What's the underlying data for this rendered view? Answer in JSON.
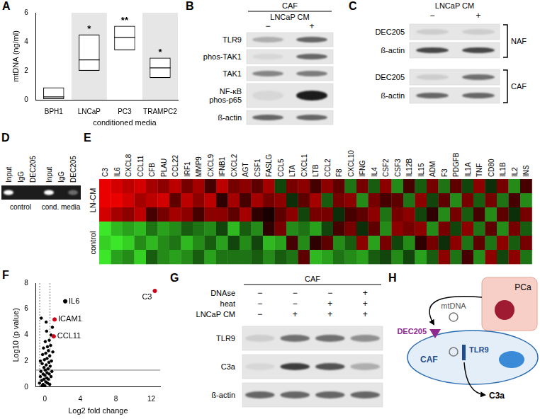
{
  "chart_data": [
    {
      "panel": "A",
      "type": "box",
      "categories": [
        "BPH1",
        "LNCaP",
        "PC3",
        "TRAMPC2"
      ],
      "lows": [
        0.05,
        2.0,
        3.4,
        1.5
      ],
      "medians": [
        0.2,
        2.75,
        4.3,
        2.2
      ],
      "highs": [
        0.85,
        4.5,
        5.1,
        2.9
      ],
      "annotations": [
        {
          "category": "LNCaP",
          "text": "*"
        },
        {
          "category": "PC3",
          "text": "**"
        },
        {
          "category": "TRAMPC2",
          "text": "*"
        }
      ],
      "x_label": {
        "text": "conditioned media",
        "spans": [
          "LNCaP",
          "PC3",
          "TRAMPC2"
        ]
      },
      "y_label": "mtDNA (ng/ml)",
      "ylim": [
        0,
        6
      ],
      "yticks": [
        0,
        2,
        4,
        6
      ],
      "grid": false
    },
    {
      "panel": "F",
      "type": "scatter",
      "x_label": "Log2 fold change",
      "y_label": "Log10 (p value)",
      "xlim": [
        -1,
        13
      ],
      "xticks": [
        0,
        4,
        8,
        12
      ],
      "ylim": [
        0,
        8
      ],
      "yticks": [
        0,
        2,
        4,
        6,
        8
      ],
      "grid": false,
      "reference_lines": {
        "x": [
          -0.58,
          0.58
        ],
        "y": [
          1.3
        ]
      },
      "points": [
        {
          "x": -0.6,
          "y": 0.3,
          "color": "#000000"
        },
        {
          "x": -0.5,
          "y": 0.8,
          "color": "#000000"
        },
        {
          "x": -0.45,
          "y": 1.2,
          "color": "#000000"
        },
        {
          "x": -0.4,
          "y": 5.3,
          "color": "#000000"
        },
        {
          "x": -0.35,
          "y": 0.5,
          "color": "#000000"
        },
        {
          "x": -0.3,
          "y": 1.8,
          "color": "#000000"
        },
        {
          "x": -0.25,
          "y": 2.5,
          "color": "#000000"
        },
        {
          "x": -0.2,
          "y": 0.2,
          "color": "#000000"
        },
        {
          "x": -0.2,
          "y": 1.0,
          "color": "#000000"
        },
        {
          "x": -0.15,
          "y": 3.0,
          "color": "#000000"
        },
        {
          "x": -0.1,
          "y": 0.6,
          "color": "#000000"
        },
        {
          "x": -0.1,
          "y": 1.5,
          "color": "#000000"
        },
        {
          "x": -0.05,
          "y": 2.1,
          "color": "#000000"
        },
        {
          "x": 0,
          "y": 0.1,
          "color": "#000000"
        },
        {
          "x": 0,
          "y": 0.9,
          "color": "#000000"
        },
        {
          "x": 0.05,
          "y": 1.3,
          "color": "#000000"
        },
        {
          "x": 0.05,
          "y": 3.5,
          "color": "#000000"
        },
        {
          "x": 0.1,
          "y": 0.4,
          "color": "#000000"
        },
        {
          "x": 0.1,
          "y": 2.6,
          "color": "#000000"
        },
        {
          "x": 0.15,
          "y": 1.7,
          "color": "#000000"
        },
        {
          "x": 0.2,
          "y": 0.7,
          "color": "#000000"
        },
        {
          "x": 0.2,
          "y": 4.3,
          "color": "#000000"
        },
        {
          "x": 0.25,
          "y": 1.1,
          "color": "#000000"
        },
        {
          "x": 0.25,
          "y": 2.2,
          "color": "#000000"
        },
        {
          "x": 0.3,
          "y": 0.3,
          "color": "#000000"
        },
        {
          "x": 0.3,
          "y": 3.1,
          "color": "#000000"
        },
        {
          "x": 0.35,
          "y": 1.4,
          "color": "#000000"
        },
        {
          "x": 0.4,
          "y": 0.6,
          "color": "#000000"
        },
        {
          "x": 0.4,
          "y": 2.8,
          "color": "#000000"
        },
        {
          "x": 0.45,
          "y": 1.9,
          "color": "#000000"
        },
        {
          "x": 0.5,
          "y": 1.0,
          "color": "#000000"
        },
        {
          "x": 0.5,
          "y": 3.6,
          "color": "#000000"
        },
        {
          "x": 0.55,
          "y": 0.2,
          "color": "#000000"
        },
        {
          "x": 0.55,
          "y": 2.4,
          "color": "#000000"
        },
        {
          "x": 0.6,
          "y": 1.6,
          "color": "#000000"
        },
        {
          "x": 0.65,
          "y": 3.2,
          "color": "#000000"
        },
        {
          "x": 0.7,
          "y": 0.8,
          "color": "#000000"
        },
        {
          "x": 0.7,
          "y": 4.0,
          "color": "#000000"
        },
        {
          "x": 0.75,
          "y": 2.0,
          "color": "#000000"
        },
        {
          "x": 0.8,
          "y": 1.2,
          "color": "#000000"
        },
        {
          "x": 0.85,
          "y": 4.6,
          "color": "#000000"
        },
        {
          "x": 0.9,
          "y": 2.7,
          "color": "#000000"
        },
        {
          "x": -0.5,
          "y": 2.0,
          "color": "#000000"
        },
        {
          "x": -0.3,
          "y": 0.1,
          "color": "#000000"
        },
        {
          "x": 0.15,
          "y": 5.0,
          "color": "#000000"
        },
        {
          "x": 2.3,
          "y": 6.6,
          "color": "#000000",
          "label": "IL6"
        },
        {
          "x": 1.1,
          "y": 5.2,
          "color": "#d0021b",
          "label": "ICAM1"
        },
        {
          "x": 1.0,
          "y": 3.9,
          "color": "#d0021b",
          "label": "CCL11"
        },
        {
          "x": 12.4,
          "y": 7.4,
          "color": "#d0021b",
          "label": "C3"
        }
      ]
    }
  ],
  "panel_b": {
    "panel": "B",
    "header": "CAF",
    "condition": "LNCaP CM",
    "lanes": [
      "−",
      "+"
    ],
    "rows": [
      {
        "label": "TLR9",
        "bands": [
          0.25,
          0.6
        ]
      },
      {
        "label": "phos-TAK1",
        "bands": [
          0.05,
          0.6
        ]
      },
      {
        "label": "TAK1",
        "bands": [
          0.45,
          0.5
        ]
      },
      {
        "label": [
          "NF-κB",
          "phos-p65"
        ],
        "bands": [
          0.05,
          0.95
        ]
      },
      {
        "label": "ß-actin",
        "bands": [
          0.6,
          0.6
        ]
      }
    ]
  },
  "panel_c": {
    "panel": "C",
    "condition": "LNCaP CM",
    "lanes": [
      "−",
      "+"
    ],
    "groups": [
      {
        "label": "NAF",
        "rows": [
          {
            "label": "DEC205",
            "bands": [
              0.1,
              0.1
            ]
          },
          {
            "label": "ß-actin",
            "bands": [
              0.75,
              0.75
            ]
          }
        ]
      },
      {
        "label": "CAF",
        "rows": [
          {
            "label": "DEC205",
            "bands": [
              0.1,
              0.55
            ]
          },
          {
            "label": "ß-actin",
            "bands": [
              0.6,
              0.6
            ]
          }
        ]
      }
    ]
  },
  "panel_d": {
    "panel": "D",
    "groups": [
      {
        "label": "control",
        "lanes": [
          "Input",
          "IgG",
          "DEC205"
        ],
        "bands": [
          1,
          0,
          0
        ]
      },
      {
        "label": "cond. media",
        "lanes": [
          "Input",
          "IgG",
          "DEC205"
        ],
        "bands": [
          1,
          0,
          0.35
        ]
      }
    ]
  },
  "panel_e": {
    "panel": "E",
    "genes": [
      "C3",
      "IL6",
      "CXCL8",
      "CCL11",
      "CFB",
      "PLAU",
      "CCL22",
      "IRF1",
      "MMP9",
      "CXCL9",
      "IFNB1",
      "CXCL2",
      "AGT",
      "CSF1",
      "FASLG",
      "CCL5",
      "LTA",
      "CXCL1",
      "LTB",
      "CCL2",
      "F8",
      "CXCL10",
      "IFNG",
      "IL4",
      "CSF2",
      "CSF3",
      "IL12B",
      "IL15",
      "ADM",
      "F3",
      "PDGFB",
      "IL1A",
      "TNF",
      "CD80",
      "IL1B",
      "IL2",
      "INS"
    ],
    "row_labels": [
      "LN-CM",
      "LN-CM",
      "LN-CM",
      "control",
      "control",
      "control"
    ],
    "color_range": [
      -1,
      1
    ],
    "cells": [
      [
        1,
        0.9,
        0.8,
        0.9,
        0.7,
        0.6,
        0.8,
        0.5,
        0.7,
        0.3,
        0.8,
        0.5,
        0.6,
        0.4,
        0.7,
        -0.3,
        0.5,
        0.6,
        0.3,
        0.6,
        0.4,
        -0.5,
        0.5,
        -0.4,
        0.6,
        -0.6,
        0.3,
        -0.4,
        0.5,
        -0.5,
        0.4,
        -0.3,
        0.6,
        -0.2,
        0.5,
        -0.6,
        0.3
      ],
      [
        1,
        1,
        0.9,
        0.7,
        0.8,
        0.9,
        0.4,
        0.8,
        0.6,
        0.8,
        0.2,
        0.7,
        0.3,
        0.7,
        0.5,
        0.6,
        -0.2,
        0.4,
        0.7,
        -0.4,
        0.5,
        0.6,
        -0.6,
        0.5,
        0.3,
        0.4,
        -0.5,
        0.6,
        -0.3,
        0.4,
        -0.6,
        0.5,
        -0.4,
        0.5,
        -0.5,
        0.3,
        -0.6
      ],
      [
        0.9,
        0.7,
        0.6,
        0.8,
        0.3,
        0.5,
        0.7,
        0.6,
        0.3,
        0.6,
        0.6,
        0.4,
        0.7,
        0.2,
        0.1,
        0.4,
        0.6,
        -0.3,
        0.5,
        0.5,
        -0.2,
        0.3,
        0.4,
        0.6,
        -0.5,
        0.5,
        0.6,
        -0.3,
        0.2,
        -0.6,
        0.5,
        -0.4,
        0.3,
        -0.6,
        0.4,
        -0.2,
        0.5
      ],
      [
        -1,
        -0.8,
        -0.7,
        -0.8,
        -0.5,
        -0.7,
        -0.6,
        -0.4,
        -0.5,
        -0.6,
        -0.3,
        -0.8,
        -0.4,
        -0.6,
        0.2,
        0.5,
        -0.6,
        -0.5,
        -0.7,
        -0.3,
        0.3,
        0.5,
        -0.2,
        0.4,
        -0.6,
        0.6,
        0.5,
        0.6,
        -0.6,
        0.5,
        -0.3,
        0.6,
        -0.5,
        0.4,
        -0.6,
        0.5,
        -0.4
      ],
      [
        -0.9,
        -1,
        -0.9,
        -0.6,
        -0.8,
        -0.6,
        -0.5,
        -0.8,
        -0.6,
        -0.4,
        -0.7,
        -0.3,
        -0.6,
        -0.3,
        -0.8,
        -0.7,
        0.3,
        -0.6,
        0.2,
        0.4,
        -0.6,
        -0.4,
        0.6,
        -0.7,
        0.5,
        -0.3,
        -0.6,
        0.2,
        0.5,
        -0.2,
        0.6,
        -0.5,
        0.4,
        -0.5,
        0.6,
        -0.4,
        0.5
      ],
      [
        -1,
        -0.7,
        -0.6,
        -0.9,
        -0.4,
        -0.6,
        -0.7,
        -0.6,
        -0.4,
        -0.7,
        -0.5,
        -0.5,
        -0.5,
        -0.4,
        -0.6,
        -0.4,
        -0.5,
        0.4,
        -0.8,
        -0.7,
        -0.5,
        -0.6,
        -0.7,
        -0.4,
        -0.3,
        -0.6,
        -0.3,
        -0.7,
        -0.4,
        0.6,
        -0.5,
        0.3,
        -0.6,
        0.6,
        -0.3,
        0.6,
        -0.5
      ]
    ]
  },
  "panel_g": {
    "panel": "G",
    "header": "CAF",
    "conditions": [
      {
        "label": "DNAse",
        "signs": [
          "−",
          "−",
          "−",
          "+"
        ]
      },
      {
        "label": "heat",
        "signs": [
          "−",
          "−",
          "+",
          "+"
        ]
      },
      {
        "label": "LNCaP CM",
        "signs": [
          "−",
          "+",
          "+",
          "+"
        ]
      }
    ],
    "rows": [
      {
        "label": "TLR9",
        "bands": [
          0.1,
          0.55,
          0.55,
          0.4
        ]
      },
      {
        "label": "C3a",
        "bands": [
          0.05,
          0.8,
          0.7,
          0.25
        ]
      },
      {
        "label": "ß-actin",
        "bands": [
          0.6,
          0.6,
          0.6,
          0.6
        ]
      }
    ]
  },
  "panel_h": {
    "panel": "H",
    "cancer_cell": "PCa",
    "vesicle": "mtDNA",
    "receptor": "DEC205",
    "sensor": "TLR9",
    "fibroblast": "CAF",
    "output": "C3a"
  }
}
